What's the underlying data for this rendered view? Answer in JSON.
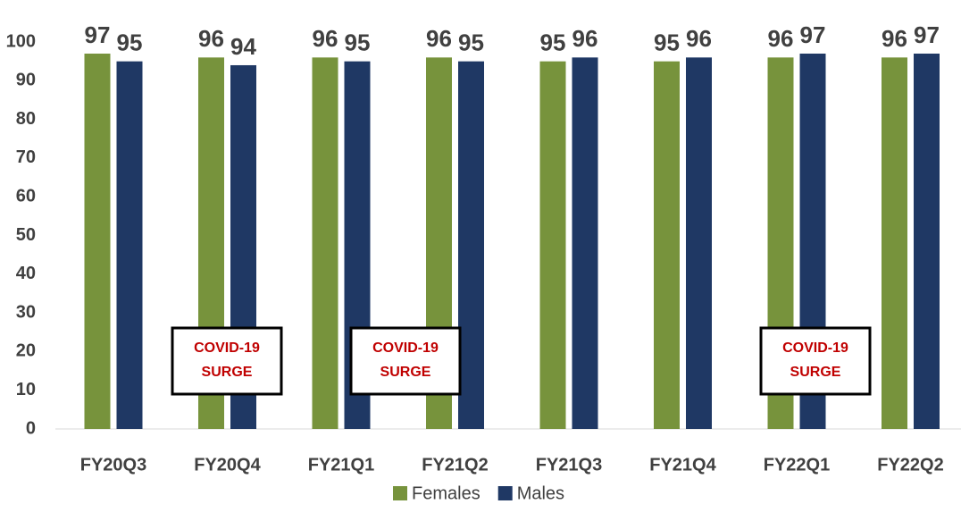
{
  "chart_data": {
    "type": "bar",
    "categories": [
      "FY20Q3",
      "FY20Q4",
      "FY21Q1",
      "FY21Q2",
      "FY21Q3",
      "FY21Q4",
      "FY22Q1",
      "FY22Q2"
    ],
    "series": [
      {
        "name": "Females",
        "color": "#77933c",
        "values": [
          97,
          96,
          96,
          96,
          95,
          95,
          96,
          96
        ]
      },
      {
        "name": "Males",
        "color": "#1f3864",
        "values": [
          95,
          94,
          95,
          95,
          96,
          96,
          97,
          97
        ]
      }
    ],
    "ylim": [
      0,
      100
    ],
    "yticks": [
      0,
      10,
      20,
      30,
      40,
      50,
      60,
      70,
      80,
      90,
      100
    ],
    "grid": false,
    "legend": "bottom",
    "annotations": [
      {
        "lines": [
          "COVID-19",
          "SURGE"
        ]
      },
      {
        "lines": [
          "COVID-19",
          "SURGE"
        ]
      },
      {
        "lines": [
          "COVID-19",
          "SURGE"
        ]
      }
    ]
  }
}
